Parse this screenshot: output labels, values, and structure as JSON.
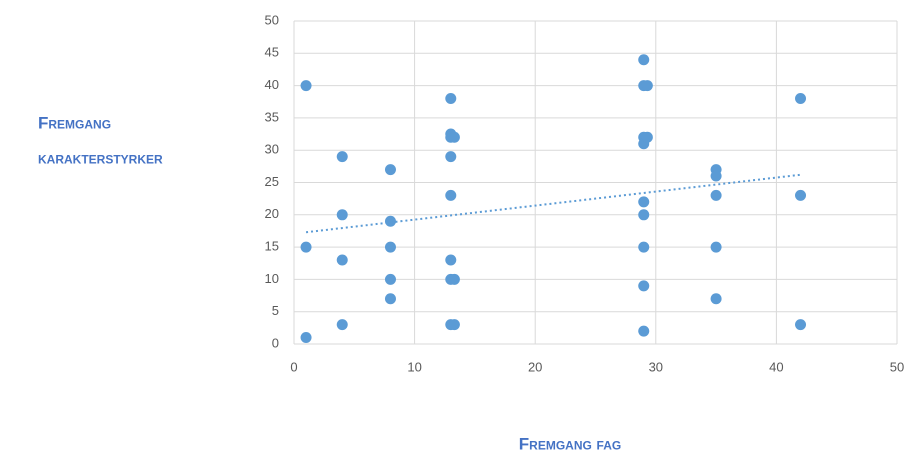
{
  "chart_data": {
    "type": "scatter",
    "xlabel": "Fremgang fag",
    "ylabel": [
      "Fremgang",
      "karakterstyrker"
    ],
    "color": "#5b9bd5",
    "x": [
      1,
      1,
      1,
      4,
      4,
      4,
      4,
      8,
      8,
      8,
      8,
      8,
      13,
      13,
      13,
      13,
      13,
      13,
      13,
      13,
      13.3,
      13.3,
      13.3,
      29,
      29,
      29,
      29,
      29,
      29,
      29,
      29,
      29,
      29.3,
      29.3,
      35,
      35,
      35,
      35,
      35,
      42,
      42,
      42
    ],
    "y": [
      40,
      15,
      1,
      29,
      20,
      13,
      3,
      27,
      19,
      15,
      10,
      7,
      38,
      32.5,
      32,
      29,
      23,
      13,
      10,
      3,
      32,
      10,
      3,
      44,
      40,
      32,
      31,
      22,
      20,
      15,
      9,
      2,
      40,
      32,
      27,
      26,
      23,
      15,
      7,
      38,
      23,
      3
    ],
    "trendline": {
      "x": [
        1,
        42
      ],
      "y": [
        17.3,
        26.2
      ]
    },
    "xlim": [
      0,
      50
    ],
    "xticks": [
      0,
      10,
      20,
      30,
      40,
      50
    ],
    "ylim": [
      0,
      50
    ],
    "yticks": [
      0,
      5,
      10,
      15,
      20,
      25,
      30,
      35,
      40,
      45,
      50
    ],
    "grid": true
  }
}
